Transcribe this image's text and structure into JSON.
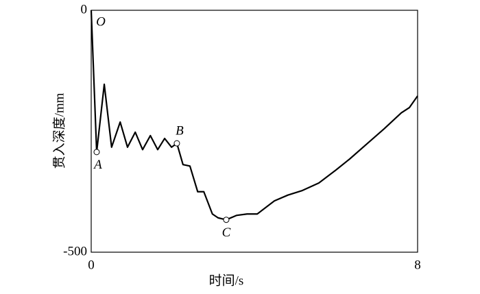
{
  "chart_data": {
    "type": "line",
    "x_label": "时间/s",
    "y_label": "贯入深度/mm",
    "xlim": [
      0,
      8
    ],
    "ylim": [
      -500,
      0
    ],
    "xticks": [
      0,
      8
    ],
    "yticks": [
      0,
      -500
    ],
    "series": [
      {
        "color": "#000000",
        "x": [
          0,
          0.134,
          0.32,
          0.5,
          0.71,
          0.89,
          1.08,
          1.26,
          1.45,
          1.63,
          1.8,
          1.97,
          2.1,
          2.25,
          2.42,
          2.61,
          2.76,
          2.97,
          3.11,
          3.31,
          3.56,
          3.82,
          4.07,
          4.49,
          4.82,
          5.16,
          5.58,
          6.0,
          6.34,
          6.76,
          7.18,
          7.6,
          7.8,
          8.0
        ],
        "values": [
          0,
          -293,
          -153,
          -283,
          -231,
          -283,
          -252,
          -288,
          -259,
          -288,
          -265,
          -283,
          -275,
          -319,
          -322,
          -375,
          -375,
          -421,
          -429,
          -433,
          -424,
          -421,
          -421,
          -394,
          -382,
          -373,
          -357,
          -330,
          -307,
          -276,
          -245,
          -212,
          -201,
          -177
        ]
      }
    ],
    "annotations": [
      {
        "label": "O",
        "x": 0,
        "y": 0,
        "marker": false
      },
      {
        "label": "A",
        "x": 0.134,
        "y": -293,
        "marker": true
      },
      {
        "label": "B",
        "x": 2.1,
        "y": -275,
        "marker": true
      },
      {
        "label": "C",
        "x": 3.31,
        "y": -433,
        "marker": true
      }
    ]
  }
}
